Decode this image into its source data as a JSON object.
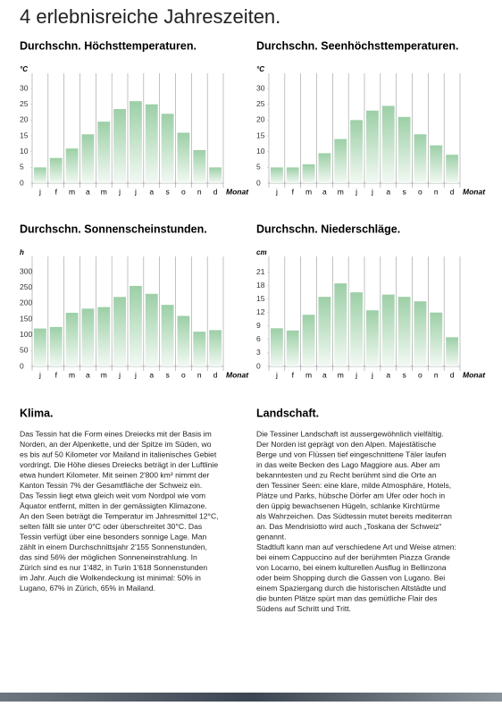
{
  "title": "4 erlebnisreiche Jahreszeiten.",
  "chart_data": [
    {
      "type": "bar",
      "title": "Durchschn. Höchsttemperaturen.",
      "unit": "°C",
      "x_label": "Monat",
      "categories": [
        "j",
        "f",
        "m",
        "a",
        "m",
        "j",
        "j",
        "a",
        "s",
        "o",
        "n",
        "d"
      ],
      "values": [
        5,
        8,
        11,
        15.5,
        19.5,
        23.5,
        26,
        25,
        22,
        16,
        10.5,
        5
      ],
      "ylim": [
        0,
        32
      ],
      "yticks": [
        0,
        5,
        10,
        15,
        20,
        25,
        30
      ],
      "color": "#9ccfa6"
    },
    {
      "type": "bar",
      "title": "Durchschn. Seenhöchsttemperaturen.",
      "unit": "°C",
      "x_label": "Monat",
      "categories": [
        "j",
        "f",
        "m",
        "a",
        "m",
        "j",
        "j",
        "a",
        "s",
        "o",
        "n",
        "d"
      ],
      "values": [
        5,
        5,
        6,
        9.5,
        14,
        20,
        23,
        24.5,
        21,
        15.5,
        12,
        9
      ],
      "ylim": [
        0,
        32
      ],
      "yticks": [
        0,
        5,
        10,
        15,
        20,
        25,
        30
      ],
      "color": "#9ccfa6"
    },
    {
      "type": "bar",
      "title": "Durchschn. Sonnenscheinstunden.",
      "unit": "h",
      "x_label": "Monat",
      "categories": [
        "j",
        "f",
        "m",
        "a",
        "m",
        "j",
        "j",
        "a",
        "s",
        "o",
        "n",
        "d"
      ],
      "values": [
        120,
        125,
        170,
        183,
        188,
        220,
        255,
        230,
        195,
        160,
        110,
        115
      ],
      "ylim": [
        0,
        320
      ],
      "yticks": [
        0,
        50,
        100,
        150,
        200,
        250,
        300
      ],
      "color": "#9ccfa6"
    },
    {
      "type": "bar",
      "title": "Durchschn. Niederschläge.",
      "unit": "cm",
      "x_label": "Monat",
      "categories": [
        "j",
        "f",
        "m",
        "a",
        "m",
        "j",
        "j",
        "a",
        "s",
        "o",
        "n",
        "d"
      ],
      "values": [
        8.5,
        8,
        11.5,
        15.5,
        18.5,
        16.5,
        12.5,
        16,
        15.5,
        14.5,
        12,
        6.5
      ],
      "ylim": [
        0,
        22.5
      ],
      "yticks": [
        0,
        3,
        6,
        9,
        12,
        15,
        18,
        21
      ],
      "color": "#9ccfa6"
    }
  ],
  "sections": [
    {
      "heading": "Klima.",
      "lines": [
        "Das Tessin hat die Form eines Dreiecks mit der Basis im",
        "Norden, an der Alpenkette, und der Spitze im Süden, wo",
        "es bis auf 50 Kilometer vor Mailand in italienisches Gebiet",
        "vordringt. Die Höhe dieses Dreiecks beträgt in der Luftlinie",
        "etwa hundert Kilometer. Mit seinen 2'800 km² nimmt der",
        "Kanton Tessin 7% der Gesamtfläche der Schweiz ein.",
        "Das Tessin liegt etwa gleich weit vom Nordpol wie vom",
        "Äquator entfernt, mitten in der gemässigten Klimazone.",
        "An den Seen beträgt die Temperatur im Jahresmittel 12°C,",
        "selten fällt sie unter 0°C oder überschreitet 30°C. Das",
        "Tessin verfügt über eine besonders sonnige Lage. Man",
        "zählt in einem Durchschnittsjahr 2'155 Sonnenstunden,",
        "das sind 56% der möglichen Sonneneinstrahlung. In",
        "Zürich sind es nur 1'482, in Turin 1'618 Sonnenstunden",
        "im Jahr. Auch die Wolkendeckung ist minimal: 50% in",
        "Lugano, 67% in Zürich, 65% in Mailand."
      ]
    },
    {
      "heading": "Landschaft.",
      "lines": [
        "Die Tessiner Landschaft ist aussergewöhnlich vielfältig.",
        "Der Norden ist geprägt von den Alpen. Majestätische",
        "Berge und von Flüssen tief eingeschnittene Täler laufen",
        "in das weite Becken des Lago Maggiore aus. Aber am",
        "bekanntesten und zu Recht berühmt sind die Orte an",
        "den Tessiner Seen: eine klare, milde Atmosphäre, Hotels,",
        "Plätze und Parks, hübsche Dörfer am Ufer oder hoch in",
        "den üppig bewachsenen Hügeln, schlanke Kirchtürme",
        "als Wahrzeichen. Das Südtessin mutet bereits mediterran",
        "an. Das Mendrisiotto wird auch „Toskana der Schweiz“",
        "genannt.",
        "Stadtluft kann man auf verschiedene Art und Weise atmen:",
        "bei einem Cappuccino auf der berühmten Piazza Grande",
        "von Locarno, bei einem kulturellen Ausflug in Bellinzona",
        "oder beim Shopping durch die Gassen von Lugano. Bei",
        "einem Spaziergang durch die historischen Altstädte und",
        "die bunten Plätze spürt man das gemütliche Flair des",
        "Südens auf Schritt und Tritt."
      ]
    }
  ]
}
